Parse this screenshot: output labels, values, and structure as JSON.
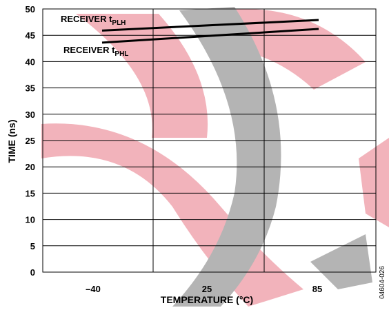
{
  "chart_data": {
    "type": "line",
    "title": "",
    "xlabel": "TEMPERATURE (°C)",
    "ylabel": "TIME (ns)",
    "x_ticks": [
      "–40",
      "25",
      "85"
    ],
    "x_values": [
      -40,
      85
    ],
    "ylim": [
      0,
      50
    ],
    "y_ticks": [
      "0",
      "5",
      "10",
      "15",
      "20",
      "25",
      "30",
      "35",
      "40",
      "45",
      "50"
    ],
    "grid": true,
    "series": [
      {
        "name": "RECEIVER tPLH",
        "label_main": "RECEIVER t",
        "label_sub": "PLH",
        "x": [
          -40,
          85
        ],
        "y": [
          45.9,
          47.9
        ],
        "color": "#000000"
      },
      {
        "name": "RECEIVER tPHL",
        "label_main": "RECEIVER t",
        "label_sub": "PHL",
        "x": [
          -40,
          85
        ],
        "y": [
          43.6,
          46.2
        ],
        "color": "#000000"
      }
    ]
  },
  "figure_code": "04604-026",
  "colors": {
    "watermark_red": "#f2b3bb",
    "watermark_gray": "#b4b4b4"
  }
}
